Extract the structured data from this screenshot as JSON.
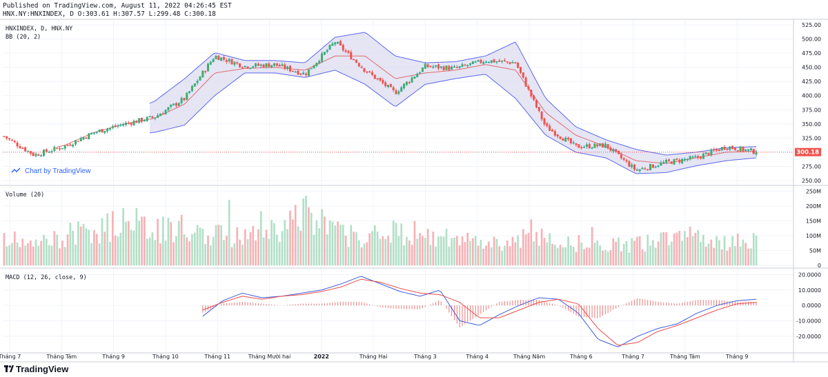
{
  "header": {
    "published": "Published on TradingView.com, August 11, 2022 04:26:45 EST",
    "symbol_line": "HNX.NY:HNXINDEX, D O:303.61 H:307.57 L:299.48 C:300.18"
  },
  "credit": "Chart by TradingView",
  "brand": "TradingView",
  "colors": {
    "up": "#26a69a",
    "up_body": "#4caf50",
    "down": "#ef5350",
    "bb_band": "#5b67e8",
    "bb_fill": "#dcdcf0",
    "bb_mid": "#e06b6b",
    "vol_up": "#b2dfc7",
    "vol_down": "#f7b1b6",
    "macd": "#3a5bd9",
    "signal": "#e84a4a",
    "last_price": "#ef5350"
  },
  "chart_data": [
    {
      "type": "line",
      "title": "HNXINDEX, D, HNX.NY",
      "indicator": "BB (20, 2)",
      "series_style": "candlestick",
      "last_price": "300.18",
      "ylim": [
        245,
        530
      ],
      "yticks": [
        "525.00",
        "500.00",
        "475.00",
        "450.00",
        "425.00",
        "400.00",
        "375.00",
        "350.00",
        "325.00",
        "300.00",
        "275.00",
        "250.00"
      ],
      "x": [
        "Tháng 7",
        "Tháng Tám",
        "Tháng 9",
        "Tháng 10",
        "Tháng 11",
        "Tháng Mười hai",
        "2022",
        "Tháng Hai",
        "Tháng 3",
        "Tháng 4",
        "Tháng Năm",
        "Tháng 6",
        "Tháng 7",
        "Tháng Tám",
        "Tháng 9"
      ],
      "close_trend": [
        328,
        295,
        310,
        335,
        350,
        362,
        395,
        470,
        452,
        455,
        438,
        495,
        445,
        405,
        452,
        448,
        462,
        458,
        345,
        310,
        312,
        268,
        282,
        290,
        310,
        300.18
      ],
      "bb_upper": [
        330,
        338,
        345,
        352,
        368,
        390,
        430,
        476,
        462,
        462,
        458,
        503,
        512,
        470,
        458,
        460,
        470,
        495,
        395,
        345,
        322,
        305,
        295,
        300,
        308,
        310
      ],
      "bb_middle": [
        320,
        300,
        312,
        335,
        350,
        360,
        385,
        440,
        448,
        450,
        445,
        470,
        470,
        430,
        440,
        445,
        455,
        445,
        370,
        330,
        310,
        285,
        280,
        290,
        300,
        302
      ],
      "bb_lower": [
        312,
        288,
        295,
        315,
        330,
        335,
        348,
        400,
        440,
        440,
        432,
        445,
        420,
        380,
        420,
        430,
        438,
        395,
        330,
        300,
        290,
        262,
        264,
        276,
        285,
        290
      ]
    },
    {
      "type": "bar",
      "title": "Volume (20)",
      "ylim": [
        0,
        260
      ],
      "yticks": [
        "250M",
        "200M",
        "150M",
        "100M",
        "50M",
        "0"
      ],
      "volume_trend": [
        105,
        70,
        95,
        115,
        130,
        180,
        125,
        135,
        120,
        100,
        150,
        135,
        190,
        130,
        100,
        125,
        120,
        100,
        95,
        85,
        80,
        105,
        90,
        80,
        70,
        75,
        85,
        100,
        110,
        80,
        95
      ]
    },
    {
      "type": "line",
      "title": "MACD (12, 26, close, 9)",
      "ylim": [
        -29,
        22
      ],
      "yticks": [
        "20.0000",
        "10.0000",
        "0.0000",
        "-10.0000",
        "-20.0000"
      ],
      "series": [
        {
          "name": "MACD",
          "values": [
            -7,
            3,
            8,
            5,
            6,
            8,
            10,
            14,
            19,
            14,
            9,
            6,
            10,
            -10,
            -13,
            -6,
            0,
            5,
            4,
            -5,
            -22,
            -27,
            -20,
            -15,
            -12,
            -5,
            0,
            3,
            4
          ]
        },
        {
          "name": "Signal",
          "values": [
            -3,
            2,
            6,
            4,
            6,
            7,
            9,
            12,
            17,
            15,
            11,
            8,
            7,
            2,
            -8,
            -8,
            -3,
            2,
            4,
            1,
            -15,
            -26,
            -24,
            -17,
            -13,
            -8,
            -3,
            1,
            2
          ]
        }
      ]
    }
  ]
}
